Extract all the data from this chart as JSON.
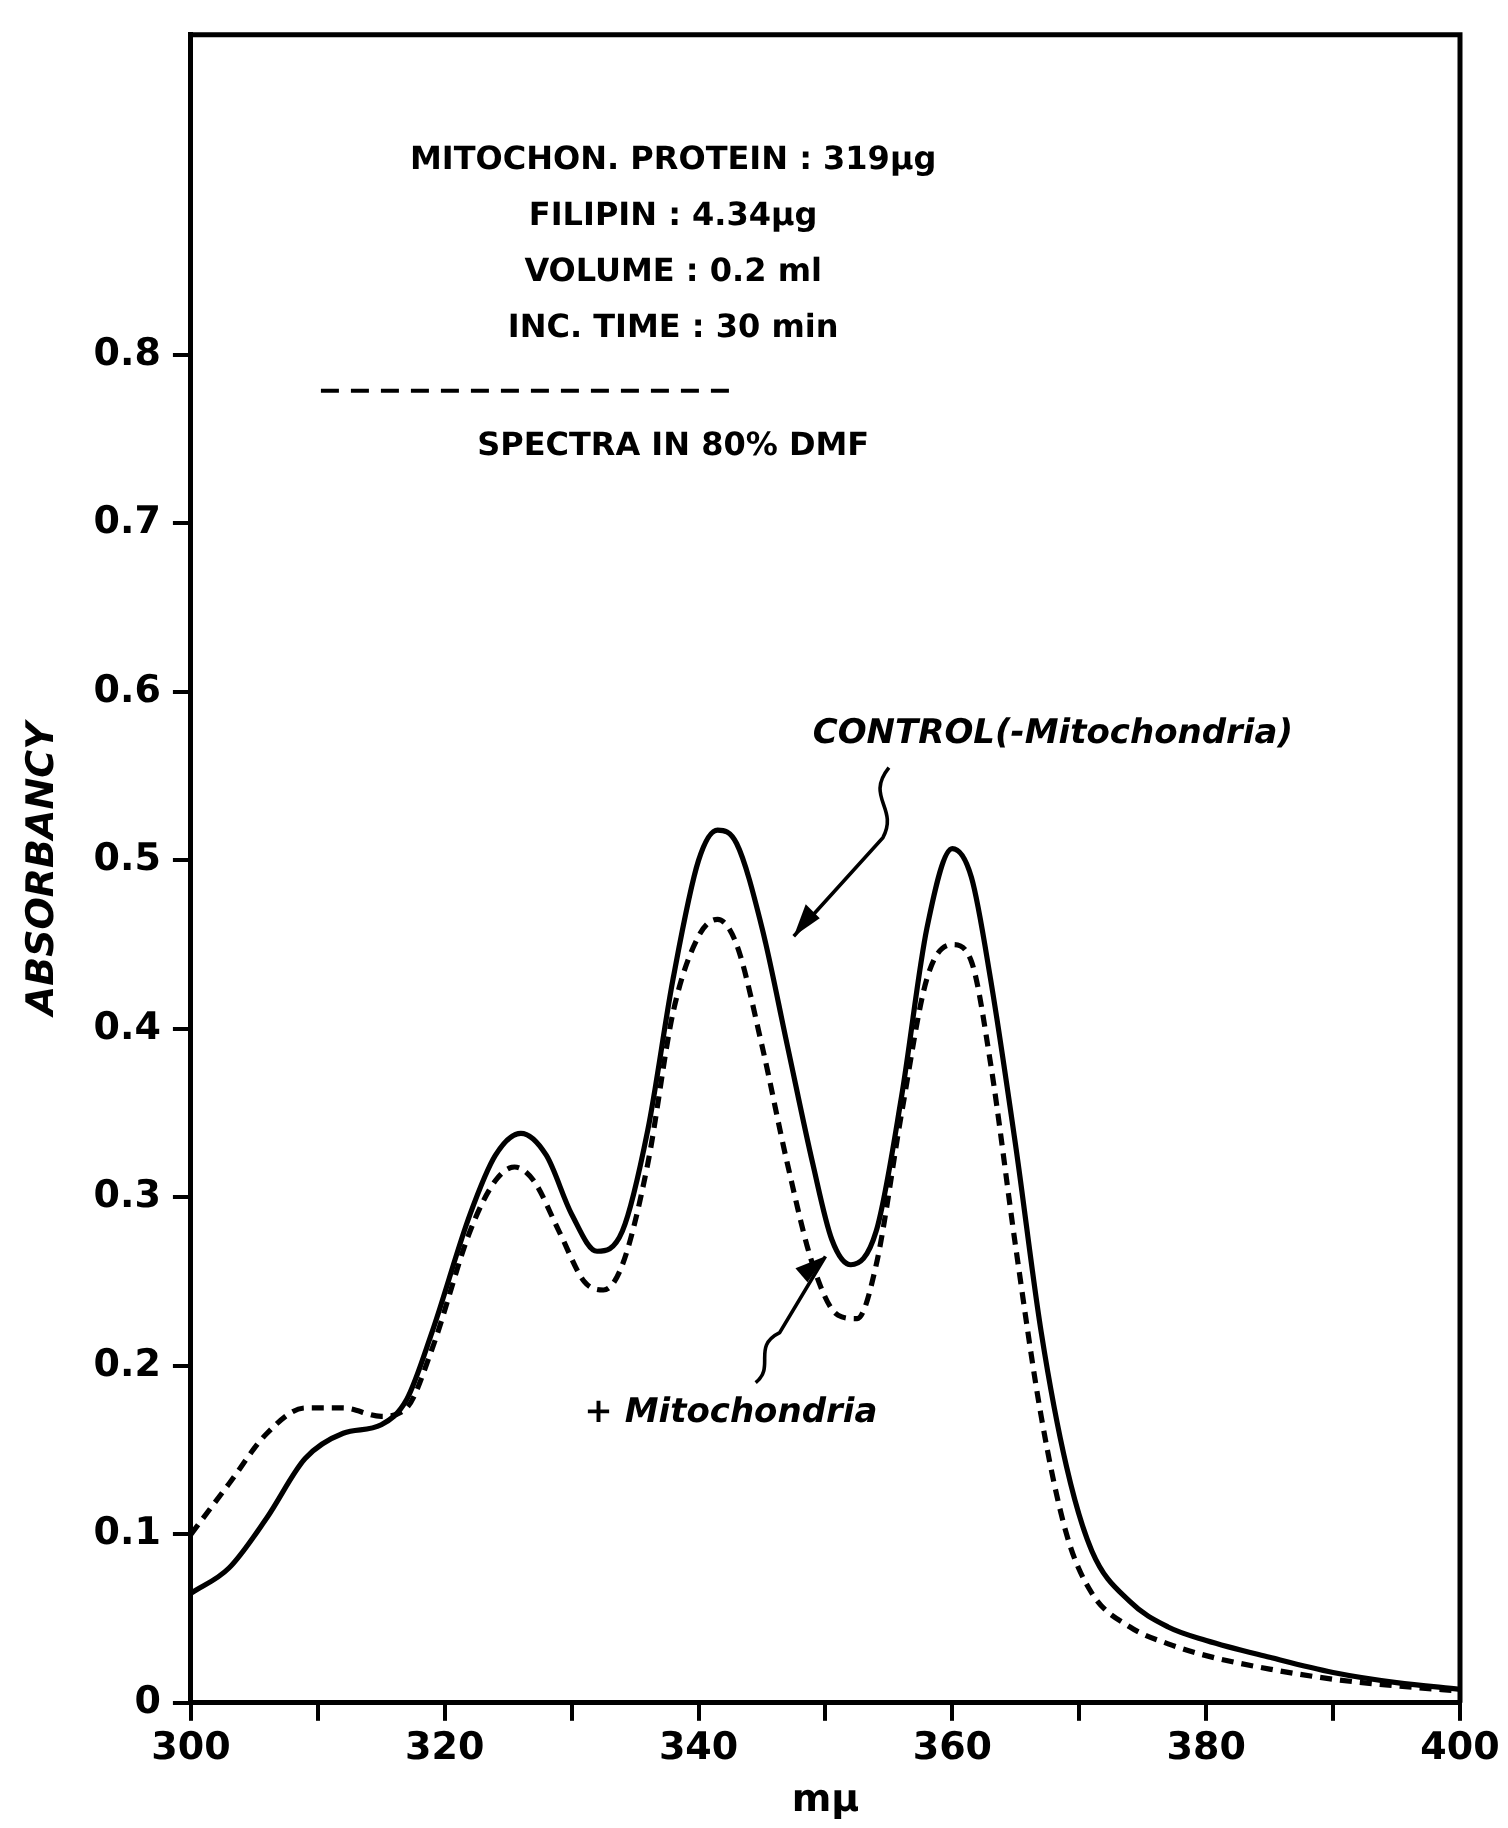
{
  "chart_data": {
    "type": "line",
    "xlabel": "mμ",
    "ylabel": "ABSORBANCY",
    "annotations": [
      "MITOCHON. PROTEIN : 319μg",
      "FILIPIN : 4.34μg",
      "VOLUME : 0.2 ml",
      "INC. TIME : 30 min",
      "SPECTRA IN 80% DMF"
    ],
    "xlim": [
      300,
      400
    ],
    "xticks": [
      300,
      {
        "value": 310,
        "label": null
      },
      320,
      {
        "value": 330,
        "label": null
      },
      340,
      {
        "value": 350,
        "label": null
      },
      360,
      {
        "value": 370,
        "label": null
      },
      380,
      {
        "value": 390,
        "label": null
      },
      400
    ],
    "ylim": [
      0,
      0.99
    ],
    "yticks": [
      0,
      0.1,
      0.2,
      0.3,
      0.4,
      0.5,
      0.6,
      0.7,
      0.8
    ],
    "grid": false,
    "legend": false,
    "marker": "none",
    "series": [
      {
        "name": "CONTROL(-Mitochondria)",
        "color": "#000000",
        "line_style": "solid",
        "x": [
          300,
          303,
          306,
          309,
          312,
          315,
          317,
          319,
          322,
          324,
          326,
          328,
          330,
          332,
          334,
          336,
          338,
          340,
          341.5,
          343,
          345,
          347,
          349,
          350.5,
          352,
          354,
          356,
          358,
          360,
          361.5,
          363,
          365,
          367,
          369,
          371,
          374,
          377,
          380,
          385,
          390,
          395,
          400
        ],
        "values": [
          0.065,
          0.08,
          0.11,
          0.145,
          0.16,
          0.165,
          0.18,
          0.22,
          0.29,
          0.325,
          0.338,
          0.325,
          0.29,
          0.268,
          0.28,
          0.34,
          0.43,
          0.5,
          0.518,
          0.51,
          0.46,
          0.39,
          0.32,
          0.275,
          0.26,
          0.28,
          0.36,
          0.46,
          0.507,
          0.49,
          0.43,
          0.33,
          0.22,
          0.14,
          0.09,
          0.06,
          0.045,
          0.037,
          0.027,
          0.018,
          0.012,
          0.008
        ]
      },
      {
        "name": "+ Mitochondria",
        "color": "#000000",
        "line_style": "dashed",
        "x": [
          300,
          303,
          306,
          309,
          312,
          315,
          317,
          319,
          322,
          324,
          325.5,
          327,
          329,
          331,
          332.5,
          334,
          336,
          338,
          340,
          341.5,
          343,
          345,
          347,
          349,
          351,
          352.5,
          354,
          356,
          358,
          360,
          361.5,
          363,
          365,
          367,
          369,
          371,
          374,
          377,
          380,
          385,
          390,
          395,
          400
        ],
        "values": [
          0.1,
          0.13,
          0.16,
          0.175,
          0.175,
          0.17,
          0.175,
          0.21,
          0.28,
          0.31,
          0.318,
          0.31,
          0.28,
          0.25,
          0.245,
          0.26,
          0.32,
          0.41,
          0.455,
          0.465,
          0.45,
          0.39,
          0.32,
          0.26,
          0.23,
          0.228,
          0.26,
          0.35,
          0.43,
          0.45,
          0.44,
          0.38,
          0.27,
          0.17,
          0.1,
          0.065,
          0.045,
          0.035,
          0.028,
          0.02,
          0.014,
          0.01,
          0.007
        ]
      }
    ]
  }
}
